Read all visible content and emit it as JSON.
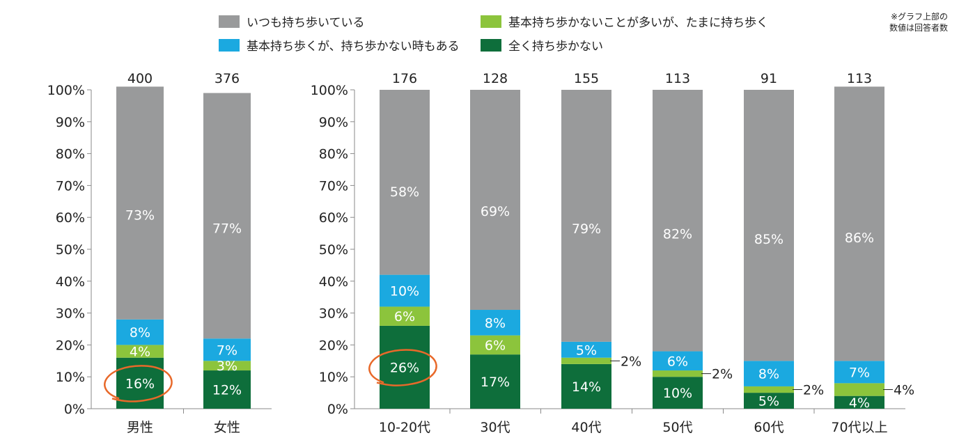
{
  "legend": [
    {
      "label": "いつも持ち歩いている",
      "color": "#999a9b"
    },
    {
      "label": "基本持ち歩かないことが多いが、たまに持ち歩く",
      "color": "#8cc43c"
    },
    {
      "label": "基本持ち歩くが、持ち歩かない時もある",
      "color": "#1ba9e0"
    },
    {
      "label": "全く持ち歩かない",
      "color": "#0e6e3b"
    }
  ],
  "note": {
    "line1": "※グラフ上部の",
    "line2": "数値は回答者数"
  },
  "chart_data": [
    {
      "type": "bar",
      "stacked": true,
      "categories": [
        "男性",
        "女性"
      ],
      "n": [
        "400",
        "376"
      ],
      "ylim": [
        0,
        100
      ],
      "yticks": [
        "0%",
        "10%",
        "20%",
        "30%",
        "40%",
        "50%",
        "60%",
        "70%",
        "80%",
        "90%",
        "100%"
      ],
      "series": [
        {
          "name": "全く持ち歩かない",
          "color": "#0e6e3b",
          "values": [
            16,
            12
          ],
          "labels": [
            "16%",
            "12%"
          ]
        },
        {
          "name": "基本持ち歩かないことが多いが、たまに持ち歩く",
          "color": "#8cc43c",
          "values": [
            4,
            3
          ],
          "labels": [
            "4%",
            "3%"
          ]
        },
        {
          "name": "基本持ち歩くが、持ち歩かない時もある",
          "color": "#1ba9e0",
          "values": [
            8,
            7
          ],
          "labels": [
            "8%",
            "7%"
          ]
        },
        {
          "name": "いつも持ち歩いている",
          "color": "#999a9b",
          "values": [
            73,
            77
          ],
          "labels": [
            "73%",
            "77%"
          ]
        }
      ],
      "highlight": [
        0
      ]
    },
    {
      "type": "bar",
      "stacked": true,
      "categories": [
        "10-20代",
        "30代",
        "40代",
        "50代",
        "60代",
        "70代以上"
      ],
      "n": [
        "176",
        "128",
        "155",
        "113",
        "91",
        "113"
      ],
      "ylim": [
        0,
        100
      ],
      "yticks": [
        "0%",
        "10%",
        "20%",
        "30%",
        "40%",
        "50%",
        "60%",
        "70%",
        "80%",
        "90%",
        "100%"
      ],
      "series": [
        {
          "name": "全く持ち歩かない",
          "color": "#0e6e3b",
          "values": [
            26,
            17,
            14,
            10,
            5,
            4
          ],
          "labels": [
            "26%",
            "17%",
            "14%",
            "10%",
            "5%",
            "4%"
          ]
        },
        {
          "name": "基本持ち歩かないことが多いが、たまに持ち歩く",
          "color": "#8cc43c",
          "values": [
            6,
            6,
            2,
            2,
            2,
            4
          ],
          "labels": [
            "6%",
            "6%",
            "2%",
            "2%",
            "2%",
            "4%"
          ]
        },
        {
          "name": "基本持ち歩くが、持ち歩かない時もある",
          "color": "#1ba9e0",
          "values": [
            10,
            8,
            5,
            6,
            8,
            7
          ],
          "labels": [
            "10%",
            "8%",
            "5%",
            "6%",
            "8%",
            "7%"
          ]
        },
        {
          "name": "いつも持ち歩いている",
          "color": "#999a9b",
          "values": [
            58,
            69,
            79,
            82,
            85,
            86
          ],
          "labels": [
            "58%",
            "69%",
            "79%",
            "82%",
            "85%",
            "86%"
          ]
        }
      ],
      "highlight": [
        0
      ]
    }
  ]
}
